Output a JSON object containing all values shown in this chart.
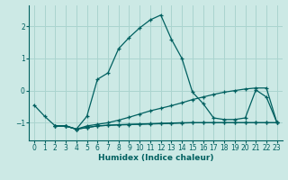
{
  "xlabel": "Humidex (Indice chaleur)",
  "bg_color": "#cce9e5",
  "grid_color": "#aad4cf",
  "line_color": "#006060",
  "xlim": [
    -0.5,
    23.5
  ],
  "ylim": [
    -1.55,
    2.65
  ],
  "xticks": [
    0,
    1,
    2,
    3,
    4,
    5,
    6,
    7,
    8,
    9,
    10,
    11,
    12,
    13,
    14,
    15,
    16,
    17,
    18,
    19,
    20,
    21,
    22,
    23
  ],
  "yticks": [
    -1,
    0,
    1,
    2
  ],
  "series": [
    {
      "x": [
        0,
        1,
        2,
        3,
        4,
        5,
        6,
        7,
        8,
        9,
        10,
        11,
        12,
        13,
        14,
        15,
        16,
        17,
        18,
        19,
        20,
        21,
        22,
        23
      ],
      "y": [
        -0.45,
        -0.8,
        -1.1,
        -1.1,
        -1.2,
        -0.8,
        0.35,
        0.55,
        1.3,
        1.65,
        1.95,
        2.2,
        2.35,
        1.6,
        1.0,
        -0.05,
        -0.4,
        -0.85,
        -0.9,
        -0.9,
        -0.85,
        0.02,
        -0.2,
        -1.0
      ]
    },
    {
      "x": [
        2,
        3,
        4,
        5,
        6,
        7,
        8,
        9,
        10,
        11,
        12,
        13,
        14,
        15,
        16,
        17,
        18,
        19,
        20,
        21,
        22,
        23
      ],
      "y": [
        -1.1,
        -1.1,
        -1.2,
        -1.1,
        -1.05,
        -1.0,
        -0.92,
        -0.83,
        -0.73,
        -0.63,
        -0.55,
        -0.47,
        -0.38,
        -0.28,
        -0.2,
        -0.12,
        -0.05,
        0.0,
        0.05,
        0.08,
        0.08,
        -1.0
      ]
    },
    {
      "x": [
        2,
        3,
        4,
        5,
        6,
        7,
        8,
        9,
        10,
        11,
        12,
        13,
        14,
        15,
        16,
        17,
        18,
        19,
        20,
        21,
        22,
        23
      ],
      "y": [
        -1.1,
        -1.1,
        -1.2,
        -1.15,
        -1.1,
        -1.08,
        -1.06,
        -1.05,
        -1.04,
        -1.03,
        -1.02,
        -1.01,
        -1.0,
        -1.0,
        -1.0,
        -1.0,
        -1.0,
        -1.0,
        -1.0,
        -1.0,
        -1.0,
        -1.0
      ]
    },
    {
      "x": [
        2,
        3,
        4,
        5,
        6,
        7,
        8,
        9,
        10,
        11,
        12,
        13,
        14,
        15,
        16,
        17,
        18,
        19,
        20,
        21,
        22,
        23
      ],
      "y": [
        -1.1,
        -1.1,
        -1.2,
        -1.15,
        -1.1,
        -1.08,
        -1.07,
        -1.06,
        -1.05,
        -1.04,
        -1.03,
        -1.02,
        -1.01,
        -1.0,
        -1.0,
        -1.0,
        -1.0,
        -1.0,
        -1.0,
        -1.0,
        -1.0,
        -1.0
      ]
    }
  ]
}
